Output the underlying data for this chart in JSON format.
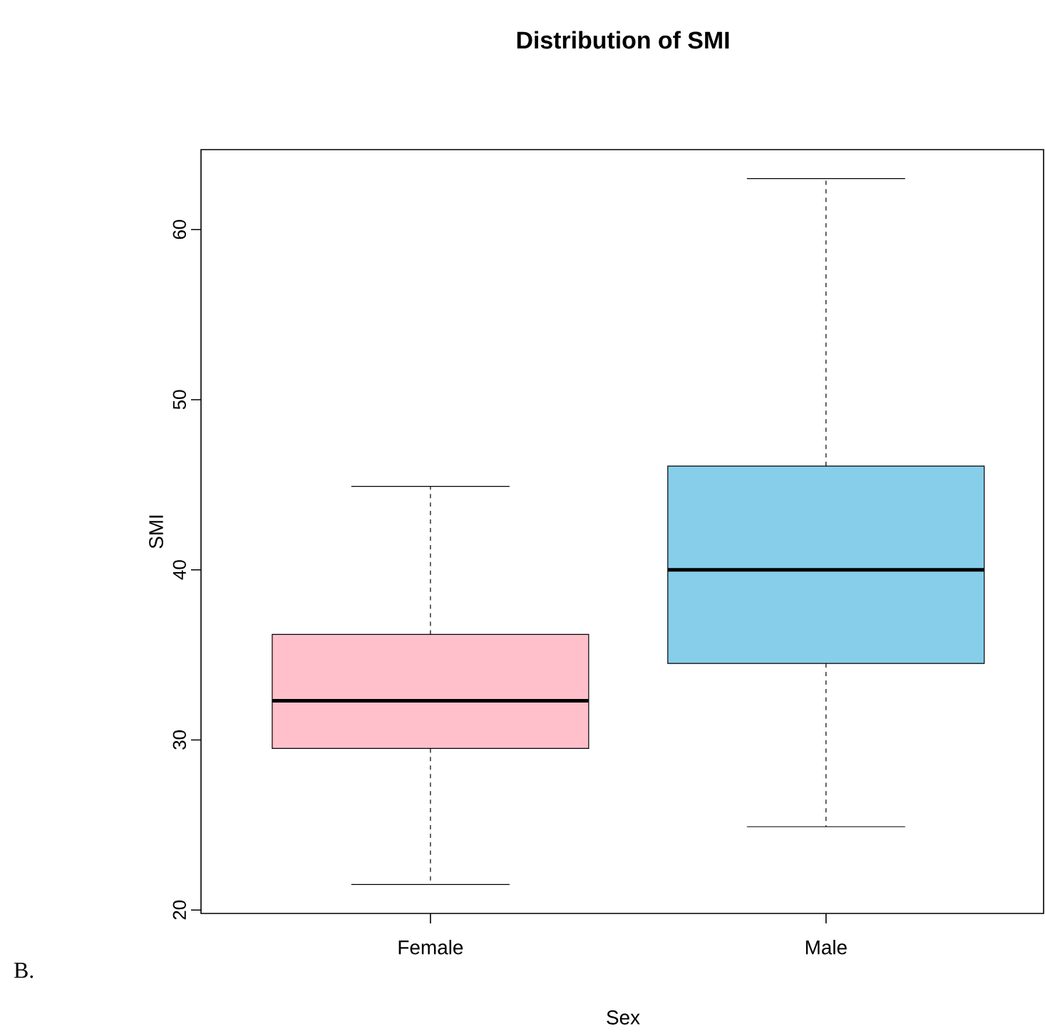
{
  "chart_data": {
    "type": "box",
    "title": "Distribution of SMI",
    "xlabel": "Sex",
    "ylabel": "SMI",
    "categories": [
      "Female",
      "Male"
    ],
    "colors": [
      "#ffc0cb",
      "#87ceeb"
    ],
    "boxes": [
      {
        "low": 21.5,
        "q1": 29.5,
        "median": 32.3,
        "q3": 36.2,
        "high": 44.9
      },
      {
        "low": 24.9,
        "q1": 34.5,
        "median": 40.0,
        "q3": 46.1,
        "high": 63.0
      }
    ],
    "ylim": [
      19.8,
      64.7
    ],
    "yticks": [
      20,
      30,
      40,
      50,
      60
    ],
    "annotations": [
      "B."
    ]
  }
}
